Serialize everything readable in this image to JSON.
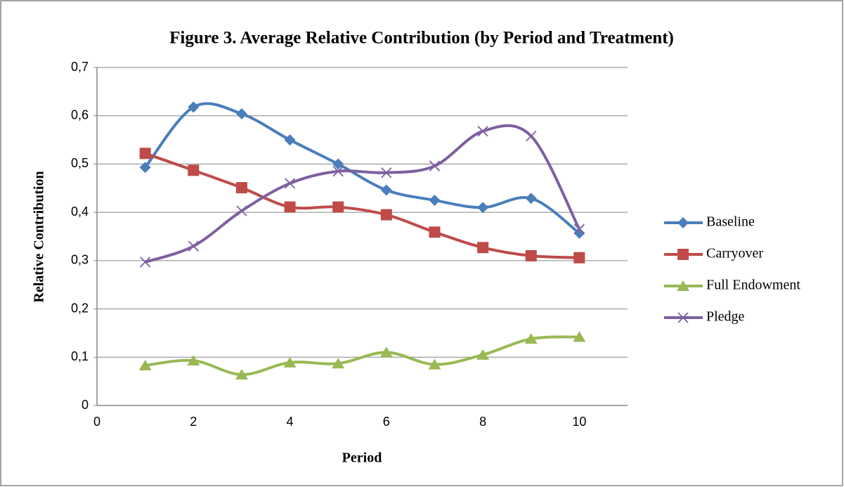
{
  "chart_data": {
    "type": "line",
    "title": "Figure 3. Average Relative Contribution (by Period and Treatment)",
    "x_label": "Period",
    "y_label": "Relative Contribution",
    "x": [
      1,
      2,
      3,
      4,
      5,
      6,
      7,
      8,
      9,
      10
    ],
    "xlim": [
      0,
      11
    ],
    "xticks": [
      0,
      2,
      4,
      6,
      8,
      10
    ],
    "ylim": [
      0,
      0.7
    ],
    "yticks": [
      0,
      {
        "value": 0.1,
        "label": "0,1"
      },
      {
        "value": 0.2,
        "label": "0,2"
      },
      {
        "value": 0.3,
        "label": "0,3"
      },
      {
        "value": 0.4,
        "label": "0,4"
      },
      {
        "value": 0.5,
        "label": "0,5"
      },
      {
        "value": 0.6,
        "label": "0,6"
      },
      {
        "value": 0.7,
        "label": "0,7"
      }
    ],
    "grid": true,
    "legend": "right",
    "smooth": true,
    "series": [
      {
        "name": "Baseline",
        "color": "#4a7ebb",
        "marker": "diamond",
        "values": [
          0.493,
          0.618,
          0.604,
          0.55,
          0.5,
          0.446,
          0.425,
          0.41,
          0.429,
          0.357
        ]
      },
      {
        "name": "Carryover",
        "color": "#be4b48",
        "marker": "square",
        "values": [
          0.522,
          0.487,
          0.451,
          0.411,
          0.411,
          0.395,
          0.359,
          0.327,
          0.31,
          0.306
        ]
      },
      {
        "name": "Full Endowment",
        "color": "#98b954",
        "marker": "triangle",
        "values": [
          0.083,
          0.093,
          0.064,
          0.089,
          0.087,
          0.11,
          0.085,
          0.105,
          0.138,
          0.142
        ]
      },
      {
        "name": "Pledge",
        "color": "#7d60a0",
        "marker": "x",
        "values": [
          0.297,
          0.33,
          0.403,
          0.46,
          0.485,
          0.482,
          0.496,
          0.568,
          0.558,
          0.365
        ]
      }
    ]
  }
}
